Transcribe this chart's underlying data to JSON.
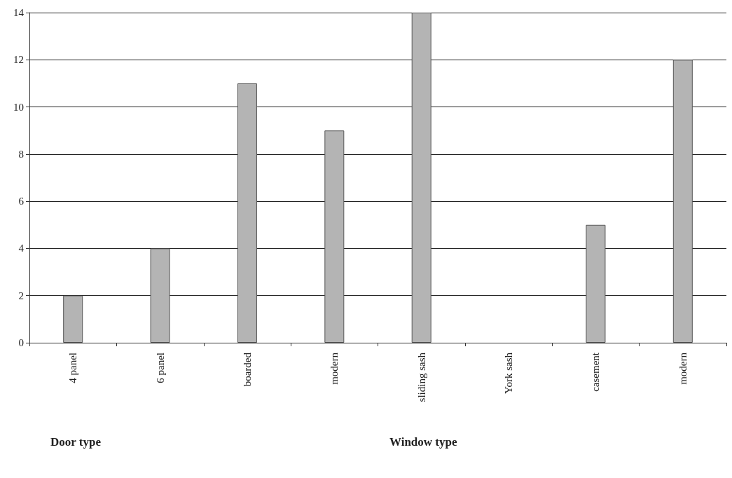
{
  "chart_data": {
    "type": "bar",
    "categories": [
      "4 panel",
      "6 panel",
      "boarded",
      "modern",
      "sliding sash",
      "York sash",
      "casement",
      "modern"
    ],
    "values": [
      2,
      4,
      11,
      9,
      14,
      null,
      5,
      12
    ],
    "color": "#b4b4b4",
    "ylim": [
      0,
      14
    ],
    "yticks": [
      0,
      2,
      4,
      6,
      8,
      10,
      12,
      14
    ],
    "grid": "y",
    "annotations": [
      "Door type",
      "Window type"
    ]
  }
}
